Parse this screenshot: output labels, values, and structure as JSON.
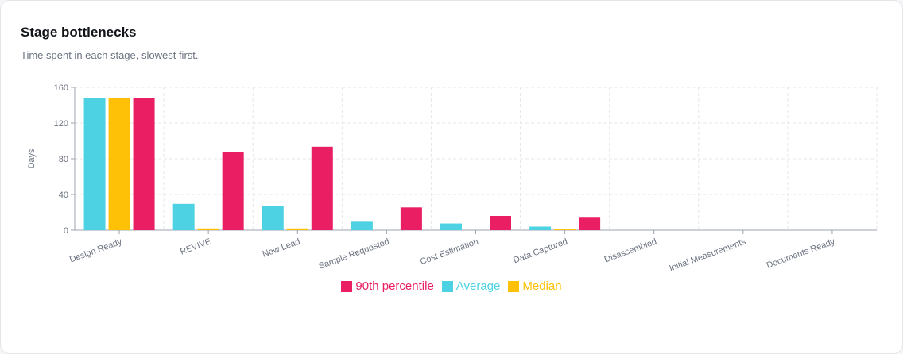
{
  "header": {
    "title": "Stage bottlenecks",
    "subtitle": "Time spent in each stage, slowest first."
  },
  "chart_data": {
    "type": "bar",
    "categories": [
      "Design Ready",
      "REVIVE",
      "New Lead",
      "Sample Requested",
      "Cost Estimation",
      "Data Captured",
      "Disassembled",
      "Initial Measurements",
      "Documents Ready"
    ],
    "series": [
      {
        "name": "Average",
        "color": "#4dd2e4",
        "values": [
          148,
          29.5,
          27.5,
          9.5,
          7.5,
          4,
          0,
          0,
          0
        ]
      },
      {
        "name": "Median",
        "color": "#ffc107",
        "values": [
          148,
          2,
          2,
          0,
          0,
          1,
          0,
          0,
          0
        ]
      },
      {
        "name": "90th percentile",
        "color": "#e91e63",
        "values": [
          148,
          88,
          93.5,
          25.5,
          16,
          14,
          0,
          0,
          0
        ]
      }
    ],
    "legend_order": [
      "90th percentile",
      "Average",
      "Median"
    ],
    "ylabel": "Days",
    "yticks": [
      0,
      40,
      80,
      120,
      160
    ],
    "ylim": [
      0,
      160
    ],
    "grid": true,
    "legend_position": "bottom"
  }
}
